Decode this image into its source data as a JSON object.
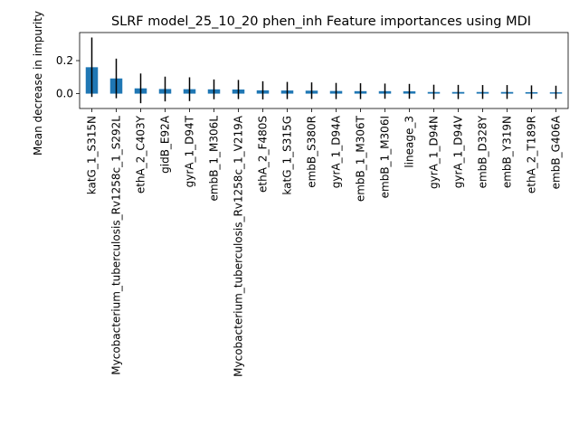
{
  "chart_data": {
    "type": "bar",
    "title": "SLRF model_25_10_20 phen_inh Feature importances using MDI",
    "xlabel": "",
    "ylabel": "Mean decrease in impurity",
    "ylim": [
      -0.09,
      0.37
    ],
    "yticks": [
      0.0,
      0.2
    ],
    "ytick_labels": [
      "0.0",
      "0.2"
    ],
    "grid": false,
    "bar_color": "#1f77b4",
    "error_color": "#000000",
    "categories": [
      "katG_1_S315N",
      "Mycobacterium_tuberculosis_Rv1258c_1_S292L",
      "ethA_2_C403Y",
      "gidB_E92A",
      "gyrA_1_D94T",
      "embB_1_M306L",
      "Mycobacterium_tuberculosis_Rv1258c_1_V219A",
      "ethA_2_F480S",
      "katG_1_S315G",
      "embB_S380R",
      "gyrA_1_D94A",
      "embB_1_M306T",
      "embB_1_M306I",
      "lineage_3",
      "gyrA_1_D94N",
      "gyrA_1_D94V",
      "embB_D328Y",
      "embB_Y319N",
      "ethA_2_T189R",
      "embB_G406A"
    ],
    "values": [
      0.16,
      0.092,
      0.032,
      0.028,
      0.027,
      0.026,
      0.025,
      0.02,
      0.019,
      0.018,
      0.016,
      0.015,
      0.015,
      0.014,
      0.01,
      0.01,
      0.01,
      0.01,
      0.009,
      0.008
    ],
    "errors": [
      0.18,
      0.12,
      0.09,
      0.075,
      0.072,
      0.06,
      0.058,
      0.055,
      0.052,
      0.05,
      0.049,
      0.048,
      0.046,
      0.045,
      0.044,
      0.043,
      0.042,
      0.042,
      0.041,
      0.04
    ]
  }
}
